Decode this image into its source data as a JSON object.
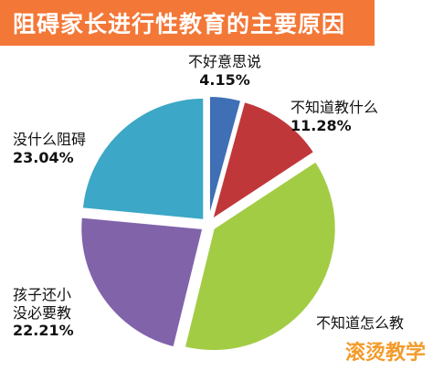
{
  "chart_data": {
    "type": "pie",
    "title": "阻碍家长进行性教育的主要原因",
    "slices": [
      {
        "label": "不好意思说",
        "value": 4.15,
        "value_label": "4.15%",
        "color": "#3f6fb5"
      },
      {
        "label": "不知道教什么",
        "value": 11.28,
        "value_label": "11.28%",
        "color": "#c0373a"
      },
      {
        "label": "不知道怎么教",
        "value": 37.32,
        "value_label": "",
        "color": "#a3cc45"
      },
      {
        "label": "孩子还小没必要教",
        "label_lines": [
          "孩子还小",
          "没必要教"
        ],
        "value": 22.21,
        "value_label": "22.21%",
        "color": "#8163aa"
      },
      {
        "label": "没什么阻碍",
        "value": 23.04,
        "value_label": "23.04%",
        "color": "#3ca7c6"
      }
    ]
  },
  "watermark": "滚烫教学",
  "colors": {
    "title_bar": "#f37736",
    "title_text": "#ffffff",
    "watermark": "#f29b2a"
  }
}
